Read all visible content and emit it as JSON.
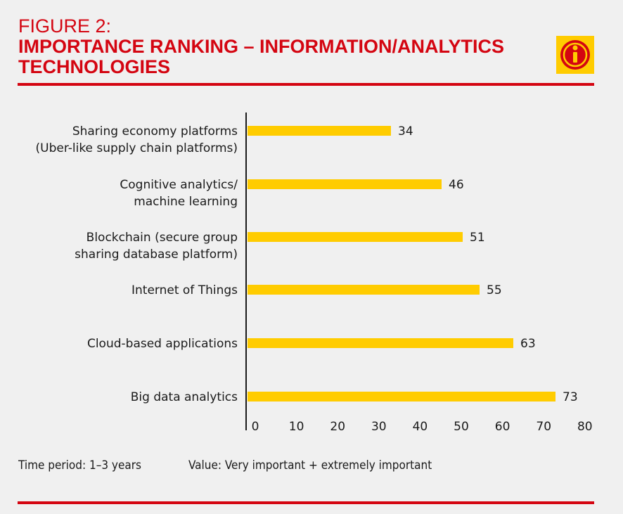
{
  "header": {
    "figure_label": "FIGURE 2:",
    "title": "IMPORTANCE RANKING – INFORMATION/ANALYTICS TECHNOLOGIES",
    "icon": "info-icon",
    "accent": "#d40511",
    "bar_color": "#ffcc00"
  },
  "chart_data": {
    "type": "bar",
    "orientation": "horizontal",
    "categories": [
      [
        "Sharing economy platforms",
        "(Uber-like supply chain platforms)"
      ],
      [
        "Cognitive analytics/",
        "machine learning"
      ],
      [
        "Blockchain (secure group",
        "sharing database platform)"
      ],
      [
        "Internet of Things"
      ],
      [
        "Cloud-based applications"
      ],
      [
        "Big data analytics"
      ]
    ],
    "values": [
      34,
      46,
      51,
      55,
      63,
      73
    ],
    "xlim": [
      0,
      80
    ],
    "xticks": [
      0,
      10,
      20,
      30,
      40,
      50,
      60,
      70,
      80
    ],
    "grid": false
  },
  "footer": {
    "period": "Time period: 1–3 years",
    "value": "Value: Very important + extremely important"
  }
}
